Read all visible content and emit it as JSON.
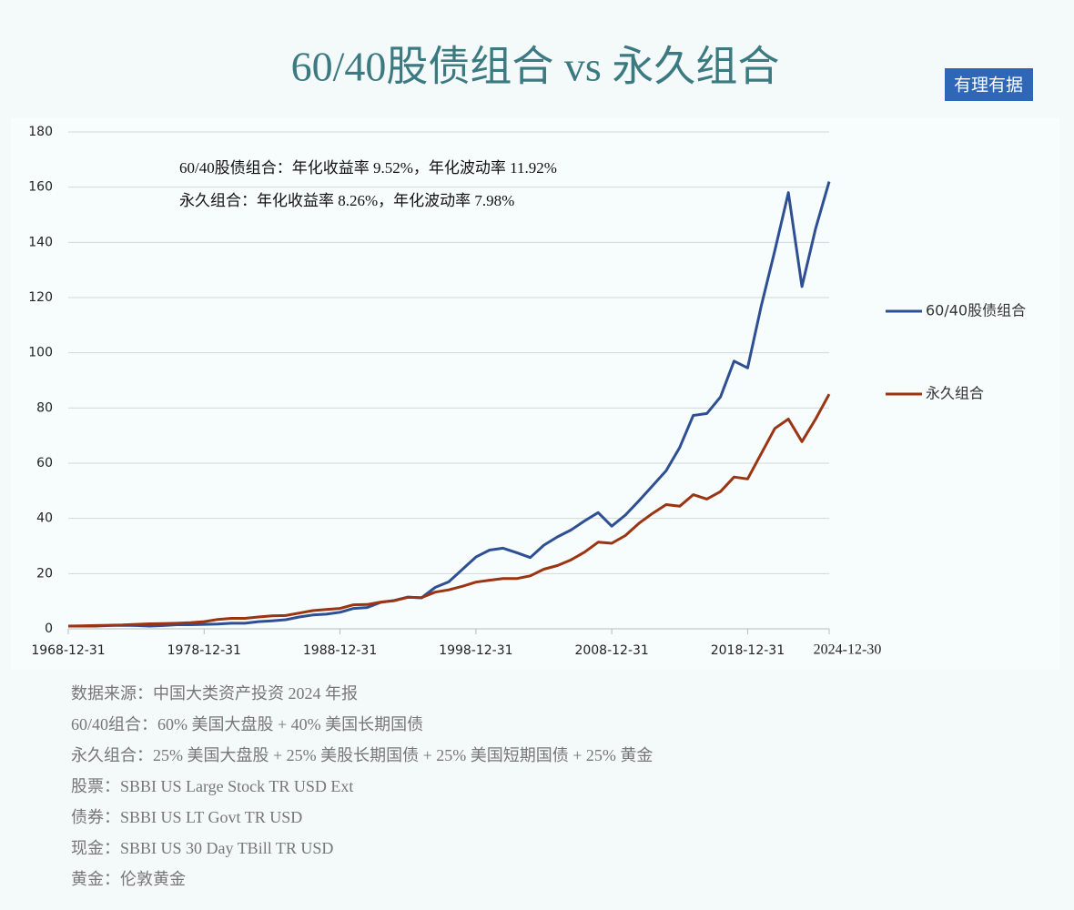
{
  "chart_data": {
    "type": "line",
    "title": "60/40股债组合 vs 永久组合",
    "badge": "有理有据",
    "annotations": [
      "60/40股债组合：年化收益率 9.52%，年化波动率 11.92%",
      "永久组合：年化收益率 8.26%，年化波动率 7.98%"
    ],
    "categories": [
      "1968-12-31",
      null,
      null,
      null,
      null,
      null,
      null,
      null,
      null,
      null,
      "1978-12-31",
      null,
      null,
      null,
      null,
      null,
      null,
      null,
      null,
      null,
      "1988-12-31",
      null,
      null,
      null,
      null,
      null,
      null,
      null,
      null,
      null,
      "1998-12-31",
      null,
      null,
      null,
      null,
      null,
      null,
      null,
      null,
      null,
      "2008-12-31",
      null,
      null,
      null,
      null,
      null,
      null,
      null,
      null,
      null,
      "2018-12-31",
      null,
      null,
      null,
      null,
      null,
      "2024-12-30"
    ],
    "series": [
      {
        "name": "60/40股债组合",
        "color": "#2f4f94",
        "values": [
          1.0,
          1.0,
          1.0,
          1.2,
          1.3,
          1.2,
          1.0,
          1.2,
          1.5,
          1.5,
          1.6,
          1.7,
          2.0,
          2.0,
          2.6,
          2.9,
          3.3,
          4.3,
          5.0,
          5.3,
          6.0,
          7.4,
          7.7,
          9.6,
          10.3,
          11.5,
          11.2,
          15,
          17,
          21.5,
          26,
          28.5,
          29.2,
          27.6,
          25.8,
          30.3,
          33.3,
          35.8,
          39.1,
          42.1,
          37.2,
          41.2,
          46.4,
          51.8,
          57.3,
          65.7,
          77.3,
          78.0,
          84.0,
          97.0,
          94.5,
          117,
          137,
          158,
          124,
          145,
          162
        ]
      },
      {
        "name": "永久组合",
        "color": "#9a3412",
        "values": [
          1.0,
          1.1,
          1.2,
          1.3,
          1.4,
          1.6,
          1.8,
          1.9,
          2.0,
          2.2,
          2.6,
          3.4,
          3.8,
          3.8,
          4.3,
          4.7,
          4.8,
          5.7,
          6.6,
          7.0,
          7.4,
          8.7,
          8.8,
          9.7,
          10.2,
          11.4,
          11.3,
          13.3,
          14.1,
          15.4,
          16.9,
          17.6,
          18.2,
          18.2,
          19.2,
          21.6,
          22.9,
          25.0,
          27.8,
          31.4,
          31.0,
          33.8,
          38.2,
          41.8,
          45.0,
          44.4,
          48.6,
          47.0,
          49.7,
          55.0,
          54.3,
          63.5,
          72.6,
          76.0,
          67.8,
          76.0,
          85.0
        ]
      }
    ],
    "ylim": [
      0,
      180
    ],
    "yticks": [
      0,
      20,
      40,
      60,
      80,
      100,
      120,
      140,
      160,
      180
    ],
    "grid": true,
    "legend": "right",
    "notes": [
      "数据来源：中国大类资产投资 2024 年报",
      "60/40组合：60% 美国大盘股 + 40% 美国长期国债",
      "永久组合：25% 美国大盘股 + 25% 美股长期国债 + 25% 美国短期国债 + 25% 黄金",
      "股票：SBBI US Large Stock TR USD Ext",
      "债券：SBBI US LT Govt TR USD",
      "现金：SBBI US 30 Day TBill TR USD",
      "黄金：伦敦黄金"
    ]
  }
}
